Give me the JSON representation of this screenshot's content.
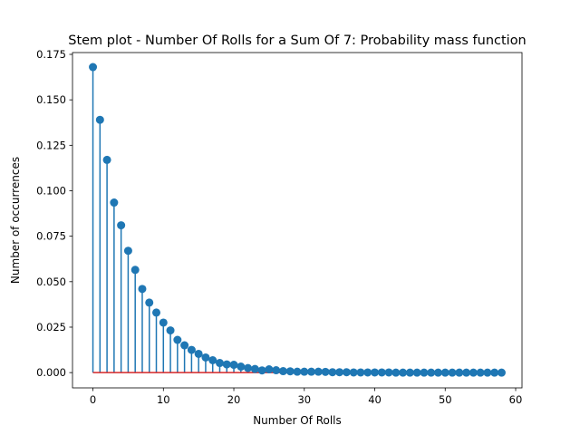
{
  "chart_data": {
    "type": "stem",
    "title": "Stem plot - Number Of Rolls for a Sum Of 7: Probability mass function",
    "xlabel": "Number Of Rolls",
    "ylabel": "Number of occurrences",
    "xlim": [
      -2.9,
      60.9
    ],
    "ylim": [
      -0.0084,
      0.176
    ],
    "xticks": [
      0,
      10,
      20,
      30,
      40,
      50,
      60
    ],
    "yticks": [
      0.0,
      0.025,
      0.05,
      0.075,
      0.1,
      0.125,
      0.15,
      0.175
    ],
    "xtick_labels": [
      "0",
      "10",
      "20",
      "30",
      "40",
      "50",
      "60"
    ],
    "ytick_labels": [
      "0.000",
      "0.025",
      "0.050",
      "0.075",
      "0.100",
      "0.125",
      "0.150",
      "0.175"
    ],
    "grid": false,
    "baseline": 0,
    "colors": {
      "stem": "#1f77b4",
      "marker": "#1f77b4",
      "baseline": "#d62728"
    },
    "x": [
      0,
      1,
      2,
      3,
      4,
      5,
      6,
      7,
      8,
      9,
      10,
      11,
      12,
      13,
      14,
      15,
      16,
      17,
      18,
      19,
      20,
      21,
      22,
      23,
      24,
      25,
      26,
      27,
      28,
      29,
      30,
      31,
      32,
      33,
      34,
      35,
      36,
      37,
      38,
      39,
      40,
      41,
      42,
      43,
      44,
      45,
      46,
      47,
      48,
      49,
      50,
      51,
      52,
      53,
      54,
      55,
      56,
      57,
      58
    ],
    "y": [
      0.168,
      0.139,
      0.117,
      0.0935,
      0.081,
      0.067,
      0.0565,
      0.046,
      0.0385,
      0.033,
      0.0275,
      0.0232,
      0.018,
      0.015,
      0.0125,
      0.0103,
      0.0083,
      0.0068,
      0.0053,
      0.0045,
      0.0043,
      0.0033,
      0.0025,
      0.002,
      0.0012,
      0.0018,
      0.0013,
      0.0008,
      0.0007,
      0.0005,
      0.0005,
      0.0005,
      0.0005,
      0.0004,
      0.0002,
      0.0002,
      0.0002,
      0.0001,
      0.0001,
      0.0001,
      0.0001,
      0.0001,
      0.0001,
      0.0,
      0.0,
      0.0,
      0.0,
      0.0,
      0.0,
      0.0,
      0.0,
      0.0,
      0.0,
      0.0,
      0.0,
      0.0,
      0.0,
      0.0,
      0.0
    ]
  }
}
